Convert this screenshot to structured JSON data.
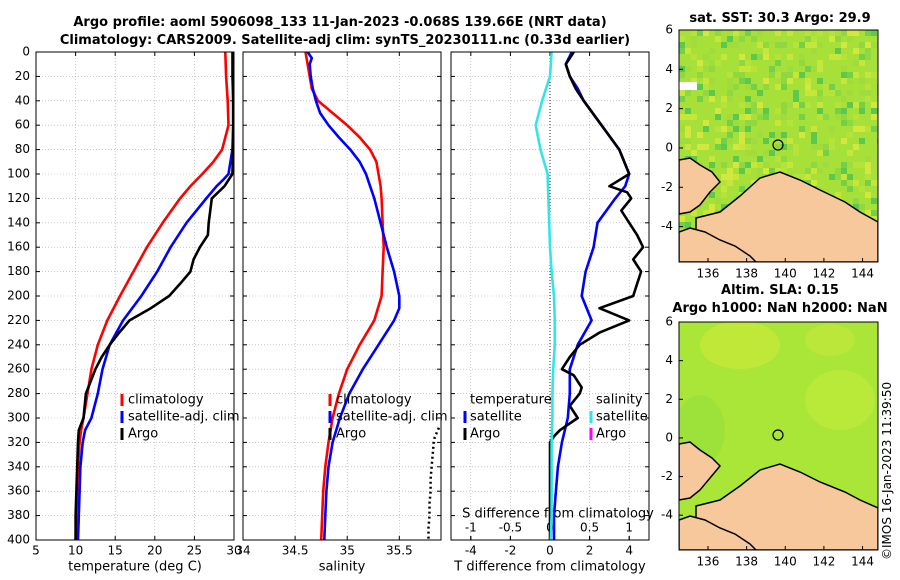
{
  "main_title": {
    "line1": "Argo profile: aoml 5906098_133 11-Jan-2023 -0.068S 139.66E (NRT data)",
    "line2": "Climatology: CARS2009. Satellite-adj clim: synTS_20230111.nc (0.33d earlier)"
  },
  "sst_map": {
    "title": "sat. SST: 30.3 Argo: 29.9",
    "x_ticks": [
      "136",
      "138",
      "140",
      "142",
      "144"
    ],
    "y_ticks": [
      "6",
      "4",
      "2",
      "0",
      "-2",
      "-4"
    ]
  },
  "sla_map": {
    "title_line1": "Altim. SLA: 0.15",
    "title_line2": "Argo h1000: NaN h2000: NaN",
    "x_ticks": [
      "136",
      "138",
      "140",
      "142",
      "144"
    ],
    "y_ticks": [
      "6",
      "4",
      "2",
      "0",
      "-2",
      "-4"
    ]
  },
  "stamp": "©IMOS 16-Jan-2023 11:39:50",
  "depth_ticks": [
    "0",
    "20",
    "40",
    "60",
    "80",
    "100",
    "120",
    "140",
    "160",
    "180",
    "200",
    "220",
    "240",
    "260",
    "280",
    "300",
    "320",
    "340",
    "360",
    "380",
    "400"
  ],
  "colors": {
    "climatology": "#ff0000",
    "satellite": "#0000ff",
    "argo": "#000000",
    "sst_satellite": "#33e5e5",
    "s_argo": "#ff00ff"
  },
  "chart_data": [
    {
      "type": "line",
      "title": "temperature",
      "xlabel": "temperature (deg C)",
      "ylabel": "depth",
      "xlim": [
        5,
        30
      ],
      "ylim": [
        400,
        0
      ],
      "x_ticks": [
        "5",
        "10",
        "15",
        "20",
        "25",
        "30"
      ],
      "legend": {
        "placement": "lower-right",
        "entries": [
          "climatology",
          "satellite-adj. clim",
          "Argo"
        ]
      },
      "series": [
        {
          "name": "climatology",
          "color": "#ff0000",
          "depth": [
            0,
            20,
            40,
            60,
            80,
            90,
            100,
            110,
            120,
            140,
            160,
            180,
            200,
            220,
            240,
            260,
            280,
            300,
            310,
            320,
            340,
            360,
            380,
            400
          ],
          "values": [
            28.9,
            29.0,
            29.2,
            29.3,
            28.5,
            27.4,
            26.0,
            24.5,
            23.2,
            21.0,
            19.0,
            17.3,
            15.6,
            14.0,
            12.8,
            12.0,
            11.5,
            11.0,
            10.7,
            10.5,
            10.3,
            10.2,
            10.1,
            10.0
          ]
        },
        {
          "name": "satellite-adj. clim",
          "color": "#0000ff",
          "depth": [
            0,
            20,
            40,
            60,
            80,
            100,
            105,
            110,
            120,
            140,
            160,
            180,
            200,
            220,
            240,
            260,
            280,
            300,
            310,
            320,
            340,
            360,
            380,
            400
          ],
          "values": [
            29.8,
            29.8,
            29.9,
            29.9,
            29.8,
            29.3,
            28.6,
            27.8,
            26.5,
            24.0,
            22.0,
            20.3,
            18.3,
            16.0,
            14.3,
            13.4,
            12.8,
            12.0,
            11.2,
            10.9,
            10.6,
            10.5,
            10.4,
            10.3
          ]
        },
        {
          "name": "Argo",
          "color": "#000000",
          "depth": [
            0,
            20,
            40,
            60,
            80,
            100,
            110,
            120,
            140,
            150,
            160,
            170,
            180,
            190,
            200,
            210,
            220,
            230,
            240,
            250,
            260,
            280,
            300,
            310,
            320,
            340,
            360,
            380,
            400
          ],
          "values": [
            29.9,
            29.9,
            29.9,
            29.9,
            29.9,
            29.8,
            28.8,
            27.2,
            26.8,
            26.7,
            25.7,
            24.9,
            24.5,
            23.2,
            21.8,
            19.5,
            16.8,
            15.5,
            14.3,
            13.3,
            12.5,
            11.3,
            11.0,
            10.4,
            10.3,
            10.2,
            10.1,
            10.0,
            10.0
          ]
        }
      ]
    },
    {
      "type": "line",
      "title": "salinity",
      "xlabel": "salinity",
      "ylabel": "depth",
      "xlim": [
        34,
        35.9
      ],
      "ylim": [
        400,
        0
      ],
      "x_ticks": [
        "34",
        "34.5",
        "35",
        "35.5"
      ],
      "legend": {
        "placement": "lower-right",
        "entries": [
          "climatology",
          "satellite-adj. clim",
          "Argo"
        ]
      },
      "series": [
        {
          "name": "climatology",
          "color": "#ff0000",
          "depth": [
            0,
            10,
            20,
            30,
            40,
            50,
            60,
            70,
            80,
            90,
            100,
            110,
            120,
            140,
            160,
            180,
            200,
            220,
            240,
            260,
            280,
            300,
            320,
            340,
            360,
            380,
            400
          ],
          "values": [
            34.6,
            34.62,
            34.64,
            34.66,
            34.72,
            34.86,
            35.0,
            35.12,
            35.22,
            35.28,
            35.3,
            35.32,
            35.33,
            35.34,
            35.35,
            35.34,
            35.33,
            35.26,
            35.12,
            35.0,
            34.92,
            34.86,
            34.82,
            34.79,
            34.77,
            34.76,
            34.75
          ]
        },
        {
          "name": "satellite-adj. clim",
          "color": "#0000ff",
          "depth": [
            0,
            5,
            10,
            20,
            30,
            40,
            50,
            60,
            70,
            80,
            90,
            100,
            110,
            120,
            140,
            160,
            180,
            200,
            210,
            220,
            240,
            260,
            280,
            300,
            320,
            340,
            360,
            380,
            400
          ],
          "values": [
            34.62,
            34.66,
            34.64,
            34.65,
            34.67,
            34.7,
            34.74,
            34.82,
            34.92,
            35.03,
            35.12,
            35.18,
            35.22,
            35.26,
            35.32,
            35.38,
            35.45,
            35.5,
            35.5,
            35.45,
            35.3,
            35.15,
            35.02,
            34.93,
            34.86,
            34.82,
            34.8,
            34.79,
            34.78
          ]
        },
        {
          "name": "Argo",
          "color": "#000000",
          "depth": [
            308,
            312,
            316,
            320,
            330,
            340,
            350,
            360,
            370,
            380,
            390,
            400
          ],
          "values": [
            35.88,
            35.86,
            35.84,
            35.83,
            35.82,
            35.81,
            35.8,
            35.8,
            35.79,
            35.79,
            35.78,
            35.78
          ],
          "style": "dotted"
        }
      ]
    },
    {
      "type": "line",
      "title": "difference from climatology",
      "xlabel": "T difference from climatology",
      "x2label": "S difference from climatology",
      "ylabel": "depth",
      "xlim": [
        -5,
        5
      ],
      "x2lim": [
        -1.25,
        1.25
      ],
      "ylim": [
        400,
        0
      ],
      "x_ticks": [
        "-4",
        "-2",
        "0",
        "2",
        "4"
      ],
      "x2_ticks": [
        "-1",
        "-0.5",
        "0",
        "0.5",
        "1"
      ],
      "legend": {
        "placement": "lower-center",
        "temperature_heading": "temperature",
        "salinity_heading": "salinity",
        "temperature_entries": [
          "satellite",
          "Argo"
        ],
        "salinity_entries": [
          "satellite",
          "Argo"
        ]
      },
      "series": [
        {
          "name": "T satellite",
          "color": "#0000ff",
          "depth": [
            0,
            10,
            20,
            30,
            40,
            60,
            80,
            100,
            110,
            120,
            140,
            160,
            180,
            200,
            220,
            240,
            260,
            280,
            300,
            320,
            340,
            360,
            380,
            400
          ],
          "values": [
            1.1,
            0.8,
            1.0,
            1.4,
            1.7,
            2.6,
            3.5,
            4.0,
            3.8,
            3.3,
            2.4,
            2.2,
            1.8,
            1.6,
            2.1,
            1.4,
            1.0,
            1.0,
            0.9,
            0.6,
            0.4,
            0.3,
            0.2,
            0.2
          ]
        },
        {
          "name": "T Argo",
          "color": "#000000",
          "depth": [
            0,
            10,
            20,
            30,
            40,
            60,
            80,
            100,
            110,
            115,
            120,
            130,
            140,
            150,
            160,
            170,
            180,
            190,
            200,
            210,
            220,
            230,
            240,
            250,
            260,
            265,
            275,
            280,
            290,
            300,
            310,
            315,
            320,
            330,
            340,
            360,
            380,
            400
          ],
          "values": [
            1.2,
            0.8,
            1.0,
            1.3,
            1.7,
            2.6,
            3.5,
            4.0,
            3.0,
            3.9,
            4.1,
            3.6,
            4.0,
            4.4,
            4.7,
            4.2,
            4.6,
            4.4,
            4.2,
            2.5,
            4.0,
            2.5,
            1.5,
            1.0,
            0.6,
            1.2,
            1.6,
            1.5,
            1.0,
            1.4,
            0.5,
            0.2,
            0.0,
            0.0,
            0.0,
            0.0,
            0.0,
            0.0
          ]
        },
        {
          "name": "S satellite",
          "color": "#33e5e5",
          "depth": [
            0,
            20,
            40,
            60,
            80,
            100,
            120,
            140,
            160,
            180,
            200,
            220,
            240,
            260,
            280,
            300,
            320,
            340,
            360,
            380,
            400
          ],
          "values": [
            0.02,
            0.0,
            -0.1,
            -0.18,
            -0.12,
            -0.03,
            -0.02,
            -0.01,
            0.0,
            0.02,
            0.05,
            0.06,
            0.06,
            0.04,
            0.03,
            0.03,
            0.02,
            0.02,
            0.02,
            0.02,
            0.01
          ]
        }
      ]
    }
  ]
}
